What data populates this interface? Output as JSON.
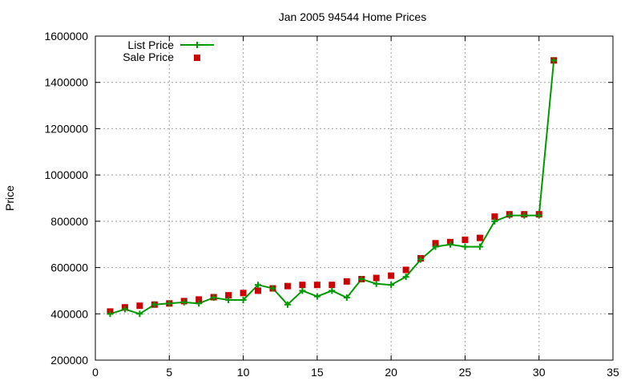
{
  "chart_data": {
    "type": "line",
    "title": "Jan 2005 94544 Home Prices",
    "xlabel": "",
    "ylabel": "Price",
    "xlim": [
      0,
      35
    ],
    "ylim": [
      200000,
      1600000
    ],
    "x_ticks": [
      "0",
      "5",
      "10",
      "15",
      "20",
      "25",
      "30",
      "35"
    ],
    "y_ticks": [
      "200000",
      "400000",
      "600000",
      "800000",
      "1000000",
      "1200000",
      "1400000",
      "1600000"
    ],
    "grid": true,
    "legend_position": "top-left",
    "series": [
      {
        "name": "List Price",
        "style": "line+cross",
        "color": "#009900",
        "x": [
          1,
          2,
          3,
          4,
          5,
          6,
          7,
          8,
          9,
          10,
          11,
          12,
          13,
          14,
          15,
          16,
          17,
          18,
          19,
          20,
          21,
          22,
          23,
          24,
          25,
          26,
          27,
          28,
          29,
          30,
          31
        ],
        "y": [
          400000,
          420000,
          400000,
          440000,
          445000,
          450000,
          445000,
          470000,
          460000,
          460000,
          525000,
          510000,
          440000,
          500000,
          475000,
          500000,
          470000,
          550000,
          530000,
          525000,
          560000,
          635000,
          690000,
          700000,
          690000,
          690000,
          800000,
          825000,
          825000,
          825000,
          1495000
        ]
      },
      {
        "name": "Sale Price",
        "style": "square",
        "color": "#cc0000",
        "x": [
          1,
          2,
          3,
          4,
          5,
          6,
          7,
          8,
          9,
          10,
          11,
          12,
          13,
          14,
          15,
          16,
          17,
          18,
          19,
          20,
          21,
          22,
          23,
          24,
          25,
          26,
          27,
          28,
          29,
          30,
          31
        ],
        "y": [
          410000,
          428000,
          435000,
          440000,
          445000,
          455000,
          462000,
          472000,
          480000,
          490000,
          500000,
          510000,
          520000,
          525000,
          525000,
          525000,
          540000,
          550000,
          555000,
          565000,
          590000,
          640000,
          705000,
          710000,
          720000,
          728000,
          820000,
          830000,
          830000,
          830000,
          1495000
        ]
      }
    ]
  }
}
